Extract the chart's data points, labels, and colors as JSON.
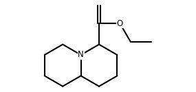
{
  "bg_color": "#ffffff",
  "line_color": "#000000",
  "line_width": 1.5,
  "fig_width": 2.85,
  "fig_height": 1.34,
  "dpi": 100,
  "N_label": "N",
  "O_label": "O",
  "font_size": 8.5
}
